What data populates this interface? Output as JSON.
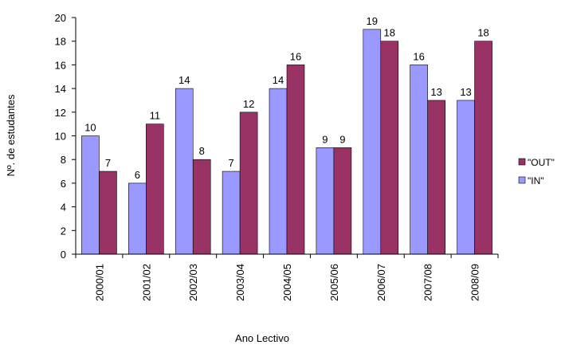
{
  "chart_data": {
    "type": "bar",
    "categories": [
      "2000/01",
      "2001/02",
      "2002/03",
      "2003/04",
      "2004/05",
      "2005/06",
      "2006/07",
      "2007/08",
      "2008/09"
    ],
    "series": [
      {
        "name": "\"IN\"",
        "values": [
          10,
          6,
          14,
          7,
          14,
          9,
          19,
          16,
          13
        ],
        "color": "#9999ff"
      },
      {
        "name": "\"OUT\"",
        "values": [
          7,
          11,
          8,
          12,
          16,
          9,
          18,
          13,
          18
        ],
        "color": "#993366"
      }
    ],
    "title": "",
    "xlabel": "Ano Lectivo",
    "ylabel": "Nº. de estudantes",
    "ylim": [
      0,
      20
    ],
    "yticks": [
      "0",
      "2",
      "4",
      "6",
      "8",
      "10",
      "12",
      "14",
      "16",
      "18",
      "20"
    ],
    "grid": false,
    "legend_position": "right",
    "legend_order": [
      "\"OUT\"",
      "\"IN\""
    ],
    "data_labels": true
  }
}
